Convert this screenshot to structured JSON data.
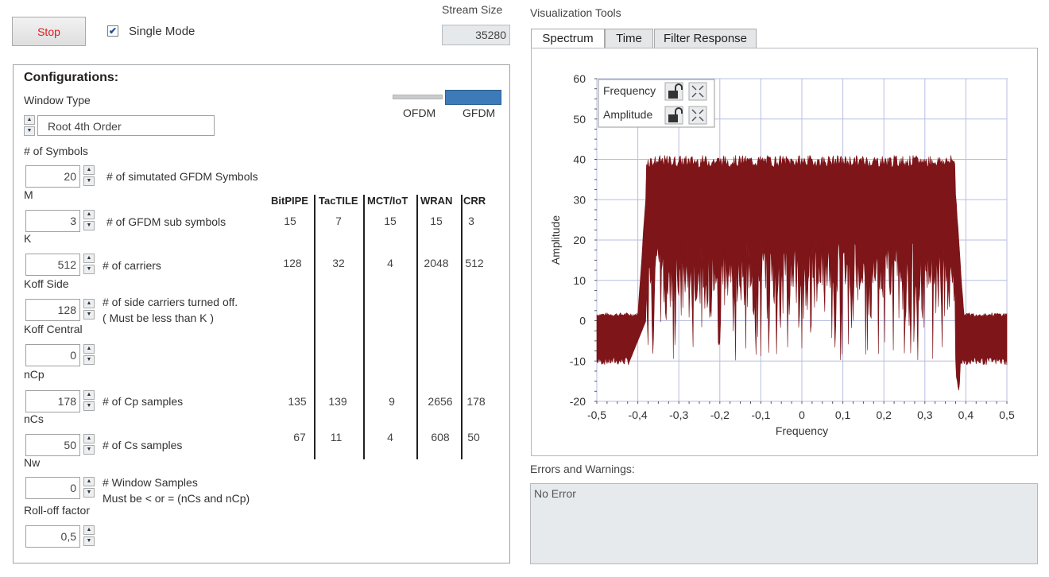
{
  "top": {
    "stop_label": "Stop",
    "single_mode_label": "Single Mode",
    "single_mode_checked": true,
    "stream_size_label": "Stream Size",
    "stream_size_value": "35280"
  },
  "config": {
    "title": "Configurations:",
    "window_type_label": "Window Type",
    "window_type_value": "Root 4th Order",
    "switch_left_label": "OFDM",
    "switch_right_label": "GFDM",
    "switch_selected": "GFDM",
    "symbols_label": "# of Symbols",
    "fields": [
      {
        "value": "20",
        "desc": "# of simutated GFDM Symbols",
        "next_label": "M"
      },
      {
        "value": "3",
        "desc": "# of  GFDM sub symbols",
        "next_label": "K"
      },
      {
        "value": "512",
        "desc": "# of  carriers",
        "next_label": "Koff Side"
      },
      {
        "value": "128",
        "desc": "# of  side carriers turned off.",
        "desc2": "( Must be less than K )",
        "next_label": "Koff Central"
      },
      {
        "value": "0",
        "desc": "",
        "next_label": "nCp"
      },
      {
        "value": "178",
        "desc": "# of Cp samples",
        "next_label": "nCs"
      },
      {
        "value": "50",
        "desc": "# of Cs samples",
        "next_label": "Nw"
      },
      {
        "value": "0",
        "desc": "# Window Samples",
        "desc2": "Must be < or = (nCs and nCp)",
        "next_label": "Roll-off factor"
      },
      {
        "value": "0,5",
        "desc": "",
        "next_label": ""
      }
    ],
    "table": {
      "headers": [
        "BitPIPE",
        "TacTILE",
        "MCT/IoT",
        "WRAN",
        "CRR"
      ],
      "rows": [
        [
          "15",
          "7",
          "15",
          "15",
          "3"
        ],
        [
          "128",
          "32",
          "4",
          "2048",
          "512"
        ],
        [
          "135",
          "139",
          "9",
          "2656",
          "178"
        ],
        [
          "67",
          "11",
          "4",
          "608",
          "50"
        ]
      ]
    }
  },
  "viz": {
    "title": "Visualization Tools",
    "tabs": [
      "Spectrum",
      "Time",
      "Filter Response"
    ],
    "active_tab": "Spectrum",
    "legend": [
      "Frequency",
      "Amplitude"
    ],
    "errors_label": "Errors and Warnings:",
    "errors_value": "No Error"
  },
  "chart_data": {
    "type": "area",
    "title": "",
    "xlabel": "Frequency",
    "ylabel": "Amplitude",
    "xlim": [
      -0.5,
      0.5
    ],
    "ylim": [
      -20,
      60
    ],
    "xticks": [
      "-0,5",
      "-0,4",
      "-0,3",
      "-0,2",
      "-0,1",
      "0",
      "0,1",
      "0,2",
      "0,3",
      "0,4",
      "0,5"
    ],
    "yticks": [
      "60",
      "50",
      "40",
      "30",
      "20",
      "10",
      "0",
      "-10",
      "-20"
    ],
    "grid": true,
    "series": [
      {
        "name": "Spectrum",
        "color": "#7d1519",
        "band_edges": [
          -0.38,
          0.375
        ],
        "in_band_upper_dB": [
          38,
          41
        ],
        "in_band_lower_dB": [
          -10,
          20
        ],
        "out_band_upper_dB": [
          1,
          2
        ],
        "out_band_lower_dB": [
          -11,
          -9
        ]
      }
    ]
  }
}
